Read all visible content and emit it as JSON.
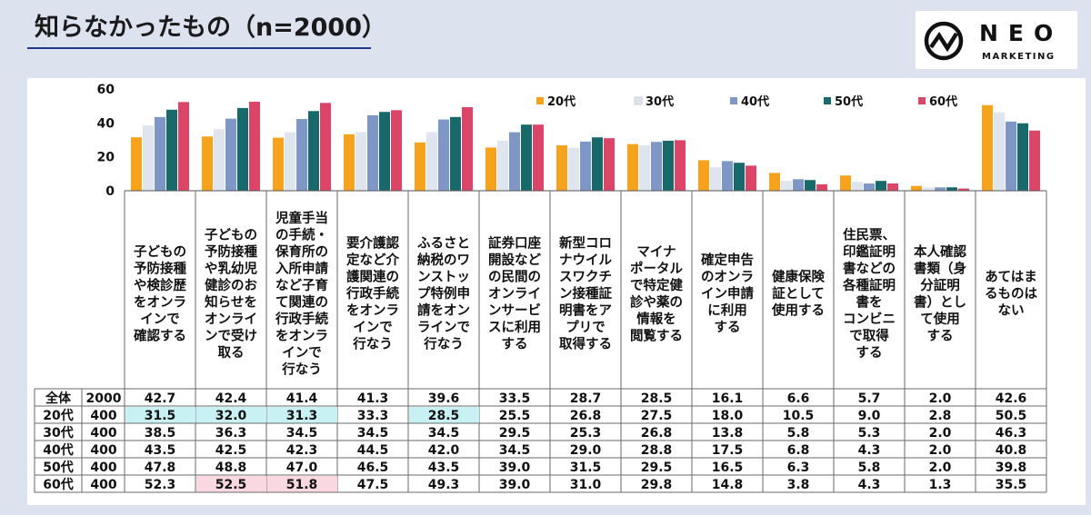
{
  "header": {
    "title": "知らなかったもの（n=2000）"
  },
  "logo": {
    "name": "NEO",
    "sub": "MARKETING"
  },
  "chart_data": {
    "type": "bar",
    "ylim": [
      0,
      60
    ],
    "yticks": [
      0,
      20,
      40,
      60
    ],
    "legend_position": "top-right",
    "categories": [
      "子どもの予防接種や検診歴をオンラインで確認する",
      "子どもの予防接種や乳幼児健診のお知らせをオンラインで受け取る",
      "児童手当の手続・保育所の入所申請など子育て関連の行政手続をオンラインで行なう",
      "要介護認定など介護関連の行政手続をオンラインで行なう",
      "ふるさと納税のワンストップ特例申請をオンラインで行なう",
      "証券口座開設などの民間のオンラインサービスに利用する",
      "新型コロナウイルスワクチン接種証明書をアプリで取得する",
      "マイナポータルで特定健診や薬の情報を閲覧する",
      "確定申告のオンライン申請に利用する",
      "健康保険証として使用する",
      "住民票、印鑑証明書などの各種証明書をコンビニで取得する",
      "本人確認書類（身分証明書）として使用する",
      "あてはまるものはない"
    ],
    "category_lines": [
      [
        "子どもの",
        "予防接種",
        "や検診歴",
        "をオンラ",
        "インで",
        "確認する"
      ],
      [
        "子どもの",
        "予防接種",
        "や乳幼児",
        "健診のお",
        "知らせを",
        "オンライ",
        "ンで受け",
        "取る"
      ],
      [
        "児童手当",
        "の手続・",
        "保育所の",
        "入所申請",
        "など子育",
        "て関連の",
        "行政手続",
        "をオンラ",
        "インで",
        "行なう"
      ],
      [
        "要介護認",
        "定など介",
        "護関連の",
        "行政手続",
        "をオンラ",
        "インで",
        "行なう"
      ],
      [
        "ふるさと",
        "納税のワ",
        "ンストッ",
        "プ特例申",
        "請をオン",
        "ラインで",
        "行なう"
      ],
      [
        "証券口座",
        "開設など",
        "の民間の",
        "オンライ",
        "ンサービ",
        "スに利用",
        "する"
      ],
      [
        "新型コロ",
        "ナウイル",
        "スワクチ",
        "ン接種証",
        "明書をア",
        "プリで",
        "取得する"
      ],
      [
        "マイナ",
        "ポータル",
        "で特定健",
        "診や薬の",
        "情報を",
        "閲覧する"
      ],
      [
        "確定申告",
        "のオンラ",
        "イン申請",
        "に利用",
        "する"
      ],
      [
        "健康保険",
        "証として",
        "使用する"
      ],
      [
        "住民票、",
        "印鑑証明",
        "書などの",
        "各種証明",
        "書を",
        "コンビニ",
        "で取得",
        "する"
      ],
      [
        "本人確認",
        "書類（身",
        "分証明",
        "書）とし",
        "て使用",
        "する"
      ],
      [
        "あてはま",
        "るものは",
        "ない"
      ]
    ],
    "series": [
      {
        "name": "20代",
        "color": "#f7a21b",
        "values": [
          31.5,
          32.0,
          31.3,
          33.3,
          28.5,
          25.5,
          26.8,
          27.5,
          18.0,
          10.5,
          9.0,
          2.8,
          50.5
        ]
      },
      {
        "name": "30代",
        "color": "#dfe5ef",
        "values": [
          38.5,
          36.3,
          34.5,
          34.5,
          34.5,
          29.5,
          25.3,
          26.8,
          13.8,
          5.8,
          5.3,
          2.0,
          46.3
        ]
      },
      {
        "name": "40代",
        "color": "#7f97c6",
        "values": [
          43.5,
          42.5,
          42.3,
          44.5,
          42.0,
          34.5,
          29.0,
          28.8,
          17.5,
          6.8,
          4.3,
          2.0,
          40.8
        ]
      },
      {
        "name": "50代",
        "color": "#176a6b",
        "values": [
          47.8,
          48.8,
          47.0,
          46.5,
          43.5,
          39.0,
          31.5,
          29.5,
          16.5,
          6.3,
          5.8,
          2.0,
          39.8
        ]
      },
      {
        "name": "60代",
        "color": "#dc4468",
        "values": [
          52.3,
          52.5,
          51.8,
          47.5,
          49.3,
          39.0,
          31.0,
          29.8,
          14.8,
          3.8,
          4.3,
          1.3,
          35.5
        ]
      }
    ],
    "table": {
      "rows": [
        {
          "label": "全体",
          "n": "2000",
          "values": [
            "42.7",
            "42.4",
            "41.4",
            "41.3",
            "39.6",
            "33.5",
            "28.7",
            "28.5",
            "16.1",
            "6.6",
            "5.7",
            "2.0",
            "42.6"
          ]
        },
        {
          "label": "20代",
          "n": "400",
          "values": [
            "31.5",
            "32.0",
            "31.3",
            "33.3",
            "28.5",
            "25.5",
            "26.8",
            "27.5",
            "18.0",
            "10.5",
            "9.0",
            "2.8",
            "50.5"
          ]
        },
        {
          "label": "30代",
          "n": "400",
          "values": [
            "38.5",
            "36.3",
            "34.5",
            "34.5",
            "34.5",
            "29.5",
            "25.3",
            "26.8",
            "13.8",
            "5.8",
            "5.3",
            "2.0",
            "46.3"
          ]
        },
        {
          "label": "40代",
          "n": "400",
          "values": [
            "43.5",
            "42.5",
            "42.3",
            "44.5",
            "42.0",
            "34.5",
            "29.0",
            "28.8",
            "17.5",
            "6.8",
            "4.3",
            "2.0",
            "40.8"
          ]
        },
        {
          "label": "50代",
          "n": "400",
          "values": [
            "47.8",
            "48.8",
            "47.0",
            "46.5",
            "43.5",
            "39.0",
            "31.5",
            "29.5",
            "16.5",
            "6.3",
            "5.8",
            "2.0",
            "39.8"
          ]
        },
        {
          "label": "60代",
          "n": "400",
          "values": [
            "52.3",
            "52.5",
            "51.8",
            "47.5",
            "49.3",
            "39.0",
            "31.0",
            "29.8",
            "14.8",
            "3.8",
            "4.3",
            "1.3",
            "35.5"
          ]
        }
      ],
      "highlight_low_color": "#c8f1f3",
      "highlight_high_color": "#f9d8e1",
      "highlights": [
        {
          "row": 1,
          "col": 0,
          "type": "low"
        },
        {
          "row": 1,
          "col": 1,
          "type": "low"
        },
        {
          "row": 1,
          "col": 2,
          "type": "low"
        },
        {
          "row": 1,
          "col": 4,
          "type": "low"
        },
        {
          "row": 5,
          "col": 1,
          "type": "high"
        },
        {
          "row": 5,
          "col": 2,
          "type": "high"
        }
      ]
    }
  }
}
